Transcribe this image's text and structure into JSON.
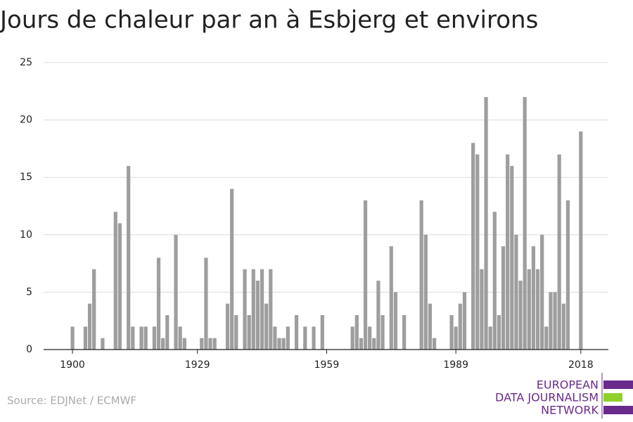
{
  "chart_data": {
    "type": "bar",
    "title": "Jours de chaleur par an à Esbjerg et environs",
    "x": [
      1900,
      1903,
      1904,
      1905,
      1907,
      1910,
      1911,
      1913,
      1914,
      1916,
      1917,
      1919,
      1920,
      1921,
      1922,
      1924,
      1925,
      1926,
      1930,
      1931,
      1932,
      1933,
      1936,
      1937,
      1938,
      1940,
      1941,
      1942,
      1943,
      1944,
      1945,
      1946,
      1947,
      1948,
      1949,
      1950,
      1952,
      1954,
      1956,
      1958,
      1965,
      1966,
      1967,
      1968,
      1969,
      1970,
      1971,
      1972,
      1974,
      1975,
      1977,
      1981,
      1982,
      1983,
      1984,
      1988,
      1989,
      1990,
      1991,
      1993,
      1994,
      1995,
      1996,
      1997,
      1998,
      1999,
      2000,
      2001,
      2002,
      2003,
      2004,
      2005,
      2006,
      2007,
      2008,
      2009,
      2010,
      2011,
      2012,
      2013,
      2014,
      2015,
      2018
    ],
    "values": [
      2,
      2,
      4,
      7,
      1,
      12,
      11,
      16,
      2,
      2,
      2,
      2,
      8,
      1,
      3,
      10,
      2,
      1,
      1,
      8,
      1,
      1,
      4,
      14,
      3,
      7,
      3,
      7,
      6,
      7,
      4,
      7,
      2,
      1,
      1,
      2,
      3,
      2,
      2,
      3,
      2,
      3,
      1,
      13,
      2,
      1,
      6,
      3,
      9,
      5,
      3,
      13,
      10,
      4,
      1,
      3,
      2,
      4,
      5,
      18,
      17,
      7,
      22,
      2,
      12,
      3,
      9,
      17,
      16,
      10,
      6,
      22,
      7,
      9,
      7,
      10,
      2,
      5,
      5,
      17,
      4,
      13,
      19
    ],
    "color": "#9e9e9e",
    "xlim": [
      1893.3,
      2024.4
    ],
    "xticks": [
      1900,
      1929,
      1959,
      1989,
      2018
    ],
    "ylim": [
      0,
      25
    ],
    "yticks": [
      0,
      5,
      10,
      15,
      20,
      25
    ],
    "grid": true,
    "source": "Source: EDJNet / ECMWF",
    "logo": [
      "EUROPEAN",
      "DATA JOURNALISM",
      "NETWORK"
    ]
  }
}
